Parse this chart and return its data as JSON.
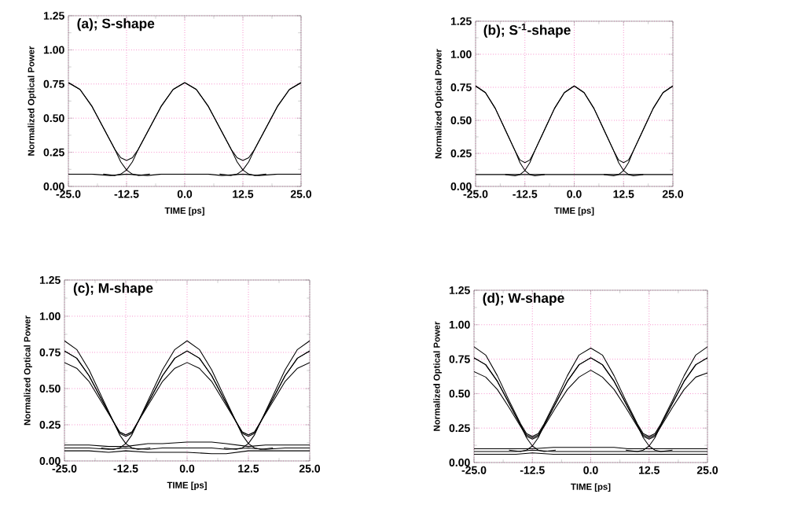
{
  "chart_data": [
    {
      "type": "line",
      "title": "(a); S-shape",
      "xlabel": "TIME [ps]",
      "ylabel": "Normalized Optical Power",
      "xlim": [
        -25,
        25
      ],
      "ylim": [
        0,
        1.25
      ],
      "grid": true,
      "xticks": [
        {
          "value": -25,
          "label": "-25.0"
        },
        {
          "value": -12.5,
          "label": "-12.5"
        },
        {
          "value": 0,
          "label": "0.0"
        },
        {
          "value": 12.5,
          "label": "12.5"
        },
        {
          "value": 25,
          "label": "25.0"
        }
      ],
      "yticks": [
        {
          "value": 0,
          "label": "0.00"
        },
        {
          "value": 0.25,
          "label": "0.25"
        },
        {
          "value": 0.5,
          "label": "0.50"
        },
        {
          "value": 0.75,
          "label": "0.75"
        },
        {
          "value": 1,
          "label": "1.00"
        },
        {
          "value": 1.25,
          "label": "1.25"
        }
      ],
      "series": [
        {
          "color": "#000000",
          "x": [
            -25,
            -22.5,
            -20,
            -17.5,
            -15,
            -13.75,
            -12.5,
            -11.25,
            -10,
            -7.5,
            -5,
            -2.5,
            0,
            2.5,
            5,
            7.5,
            10,
            11.25,
            12.5,
            13.75,
            15,
            17.5,
            20,
            22.5,
            25
          ],
          "values": [
            0.76,
            0.71,
            0.59,
            0.43,
            0.27,
            0.21,
            0.19,
            0.21,
            0.27,
            0.43,
            0.59,
            0.71,
            0.76,
            0.71,
            0.59,
            0.43,
            0.27,
            0.21,
            0.19,
            0.21,
            0.27,
            0.43,
            0.59,
            0.71,
            0.76
          ]
        },
        {
          "color": "#000000",
          "x": [
            -25,
            -20,
            -16,
            -12.5,
            -8,
            -5,
            0,
            5,
            8,
            12.5,
            16,
            20,
            25
          ],
          "values": [
            0.09,
            0.09,
            0.08,
            0.09,
            0.08,
            0.09,
            0.09,
            0.09,
            0.08,
            0.09,
            0.08,
            0.09,
            0.09
          ]
        },
        {
          "color": "#000000",
          "x": [
            -25,
            -22.5,
            -20,
            -17.5,
            -15,
            -13.75,
            -12.5,
            -11.25,
            -10,
            -7.5
          ],
          "values": [
            0.76,
            0.71,
            0.59,
            0.43,
            0.27,
            0.18,
            0.12,
            0.09,
            0.08,
            0.09
          ]
        },
        {
          "color": "#000000",
          "x": [
            -17.5,
            -15,
            -13.75,
            -12.5,
            -11.25,
            -10,
            -7.5,
            -5,
            -2.5,
            0
          ],
          "values": [
            0.09,
            0.08,
            0.09,
            0.12,
            0.18,
            0.27,
            0.43,
            0.59,
            0.71,
            0.76
          ]
        },
        {
          "color": "#000000",
          "x": [
            0,
            2.5,
            5,
            7.5,
            10,
            11.25,
            12.5,
            13.75,
            15,
            17.5
          ],
          "values": [
            0.76,
            0.71,
            0.59,
            0.43,
            0.27,
            0.18,
            0.12,
            0.09,
            0.08,
            0.09
          ]
        },
        {
          "color": "#000000",
          "x": [
            7.5,
            10,
            11.25,
            12.5,
            13.75,
            15,
            17.5,
            20,
            22.5,
            25
          ],
          "values": [
            0.09,
            0.08,
            0.09,
            0.12,
            0.18,
            0.27,
            0.43,
            0.59,
            0.71,
            0.76
          ]
        }
      ]
    },
    {
      "type": "line",
      "title": "(b); S$^{-1}$-shape",
      "xlabel": "TIME [ps]",
      "ylabel": "Normalized Optical Power",
      "xlim": [
        -25,
        25
      ],
      "ylim": [
        0,
        1.25
      ],
      "grid": true,
      "xticks": [
        {
          "value": -25,
          "label": "-25.0"
        },
        {
          "value": -12.5,
          "label": "-12.5"
        },
        {
          "value": 0,
          "label": "0.0"
        },
        {
          "value": 12.5,
          "label": "12.5"
        },
        {
          "value": 25,
          "label": "25.0"
        }
      ],
      "yticks": [
        {
          "value": 0,
          "label": "0.00"
        },
        {
          "value": 0.25,
          "label": "0.25"
        },
        {
          "value": 0.5,
          "label": "0.50"
        },
        {
          "value": 0.75,
          "label": "0.75"
        },
        {
          "value": 1,
          "label": "1.00"
        },
        {
          "value": 1.25,
          "label": "1.25"
        }
      ],
      "series": [
        {
          "color": "#000000",
          "x": [
            -25,
            -22.5,
            -20,
            -17.5,
            -15,
            -13.75,
            -12.5,
            -11.25,
            -10,
            -7.5,
            -5,
            -2.5,
            0,
            2.5,
            5,
            7.5,
            10,
            11.25,
            12.5,
            13.75,
            15,
            17.5,
            20,
            22.5,
            25
          ],
          "values": [
            0.76,
            0.71,
            0.59,
            0.43,
            0.27,
            0.2,
            0.18,
            0.2,
            0.27,
            0.43,
            0.59,
            0.71,
            0.76,
            0.71,
            0.59,
            0.43,
            0.27,
            0.2,
            0.18,
            0.2,
            0.27,
            0.43,
            0.59,
            0.71,
            0.76
          ]
        },
        {
          "color": "#000000",
          "x": [
            -25,
            -20,
            -16,
            -12.5,
            -8,
            -5,
            0,
            5,
            8,
            12.5,
            16,
            20,
            25
          ],
          "values": [
            0.09,
            0.09,
            0.09,
            0.09,
            0.09,
            0.09,
            0.09,
            0.09,
            0.09,
            0.09,
            0.09,
            0.09,
            0.09
          ]
        },
        {
          "color": "#000000",
          "x": [
            -25,
            -22.5,
            -20,
            -17.5,
            -15,
            -13.75,
            -12.5,
            -11.25,
            -10,
            -7.5
          ],
          "values": [
            0.76,
            0.71,
            0.59,
            0.43,
            0.27,
            0.18,
            0.12,
            0.09,
            0.08,
            0.09
          ]
        },
        {
          "color": "#000000",
          "x": [
            -17.5,
            -15,
            -13.75,
            -12.5,
            -11.25,
            -10,
            -7.5,
            -5,
            -2.5,
            0
          ],
          "values": [
            0.09,
            0.08,
            0.09,
            0.12,
            0.18,
            0.27,
            0.43,
            0.59,
            0.71,
            0.76
          ]
        },
        {
          "color": "#000000",
          "x": [
            0,
            2.5,
            5,
            7.5,
            10,
            11.25,
            12.5,
            13.75,
            15,
            17.5
          ],
          "values": [
            0.76,
            0.71,
            0.59,
            0.43,
            0.27,
            0.18,
            0.12,
            0.09,
            0.08,
            0.09
          ]
        },
        {
          "color": "#000000",
          "x": [
            7.5,
            10,
            11.25,
            12.5,
            13.75,
            15,
            17.5,
            20,
            22.5,
            25
          ],
          "values": [
            0.09,
            0.08,
            0.09,
            0.12,
            0.18,
            0.27,
            0.43,
            0.59,
            0.71,
            0.76
          ]
        }
      ]
    },
    {
      "type": "line",
      "title": "(c); M-shape",
      "xlabel": "TIME [ps]",
      "ylabel": "Normalized Optical Power",
      "xlim": [
        -25,
        25
      ],
      "ylim": [
        0,
        1.25
      ],
      "grid": true,
      "xticks": [
        {
          "value": -25,
          "label": "-25.0"
        },
        {
          "value": -12.5,
          "label": "-12.5"
        },
        {
          "value": 0,
          "label": "0.0"
        },
        {
          "value": 12.5,
          "label": "12.5"
        },
        {
          "value": 25,
          "label": "25.0"
        }
      ],
      "yticks": [
        {
          "value": 0,
          "label": "0.00"
        },
        {
          "value": 0.25,
          "label": "0.25"
        },
        {
          "value": 0.5,
          "label": "0.50"
        },
        {
          "value": 0.75,
          "label": "0.75"
        },
        {
          "value": 1,
          "label": "1.00"
        },
        {
          "value": 1.25,
          "label": "1.25"
        }
      ],
      "series": [
        {
          "color": "#000000",
          "x": [
            -25,
            -22.5,
            -20,
            -17.5,
            -15,
            -13.75,
            -12.5,
            -11.25,
            -10,
            -7.5,
            -5,
            -2.5,
            0,
            2.5,
            5,
            7.5,
            10,
            11.25,
            12.5,
            13.75,
            15,
            17.5,
            20,
            22.5,
            25
          ],
          "values": [
            0.76,
            0.71,
            0.59,
            0.43,
            0.27,
            0.2,
            0.18,
            0.2,
            0.27,
            0.43,
            0.59,
            0.71,
            0.76,
            0.71,
            0.59,
            0.43,
            0.27,
            0.2,
            0.18,
            0.2,
            0.27,
            0.43,
            0.59,
            0.71,
            0.76
          ]
        },
        {
          "color": "#000000",
          "x": [
            -25,
            -22.5,
            -20,
            -17.5,
            -15,
            -13.75,
            -12.5,
            -11.25,
            -10,
            -7.5,
            -5,
            -2.5,
            0,
            2.5,
            5,
            7.5,
            10,
            11.25,
            12.5,
            13.75,
            15,
            17.5,
            20,
            22.5,
            25
          ],
          "values": [
            0.83,
            0.77,
            0.63,
            0.45,
            0.27,
            0.19,
            0.17,
            0.19,
            0.27,
            0.45,
            0.63,
            0.77,
            0.83,
            0.77,
            0.63,
            0.45,
            0.27,
            0.19,
            0.17,
            0.19,
            0.27,
            0.45,
            0.63,
            0.77,
            0.83
          ]
        },
        {
          "color": "#000000",
          "x": [
            -25,
            -22.5,
            -20,
            -17.5,
            -15,
            -13.75,
            -12.5,
            -11.25,
            -10,
            -7.5,
            -5,
            -2.5,
            0,
            2.5,
            5,
            7.5,
            10,
            11.25,
            12.5,
            13.75,
            15,
            17.5,
            20,
            22.5,
            25
          ],
          "values": [
            0.68,
            0.64,
            0.55,
            0.41,
            0.27,
            0.2,
            0.18,
            0.2,
            0.27,
            0.41,
            0.55,
            0.64,
            0.68,
            0.64,
            0.55,
            0.41,
            0.27,
            0.2,
            0.18,
            0.2,
            0.27,
            0.41,
            0.55,
            0.64,
            0.68
          ]
        },
        {
          "color": "#000000",
          "x": [
            -25,
            -20,
            -16,
            -12.5,
            -8,
            -5,
            0,
            5,
            8,
            12.5,
            16,
            20,
            25
          ],
          "values": [
            0.09,
            0.09,
            0.08,
            0.09,
            0.08,
            0.09,
            0.09,
            0.09,
            0.08,
            0.09,
            0.08,
            0.09,
            0.09
          ]
        },
        {
          "color": "#000000",
          "x": [
            -25,
            -20,
            -16,
            -12.5,
            -8,
            -5,
            0,
            5,
            8,
            12.5,
            16,
            20,
            25
          ],
          "values": [
            0.11,
            0.11,
            0.1,
            0.1,
            0.12,
            0.12,
            0.13,
            0.13,
            0.12,
            0.1,
            0.11,
            0.11,
            0.11
          ]
        },
        {
          "color": "#000000",
          "x": [
            -25,
            -20,
            -16,
            -12.5,
            -8,
            -5,
            0,
            5,
            8,
            12.5,
            16,
            20,
            25
          ],
          "values": [
            0.07,
            0.07,
            0.06,
            0.07,
            0.06,
            0.06,
            0.06,
            0.05,
            0.05,
            0.07,
            0.07,
            0.07,
            0.07
          ]
        },
        {
          "color": "#000000",
          "x": [
            -25,
            -22.5,
            -20,
            -17.5,
            -15,
            -13.75,
            -12.5,
            -11.25,
            -10,
            -7.5
          ],
          "values": [
            0.76,
            0.71,
            0.59,
            0.43,
            0.27,
            0.18,
            0.12,
            0.09,
            0.08,
            0.09
          ]
        },
        {
          "color": "#000000",
          "x": [
            -17.5,
            -15,
            -13.75,
            -12.5,
            -11.25,
            -10,
            -7.5,
            -5,
            -2.5,
            0
          ],
          "values": [
            0.09,
            0.08,
            0.09,
            0.12,
            0.18,
            0.27,
            0.43,
            0.59,
            0.71,
            0.76
          ]
        },
        {
          "color": "#000000",
          "x": [
            0,
            2.5,
            5,
            7.5,
            10,
            11.25,
            12.5,
            13.75,
            15,
            17.5
          ],
          "values": [
            0.76,
            0.71,
            0.59,
            0.43,
            0.27,
            0.18,
            0.12,
            0.09,
            0.08,
            0.09
          ]
        },
        {
          "color": "#000000",
          "x": [
            7.5,
            10,
            11.25,
            12.5,
            13.75,
            15,
            17.5,
            20,
            22.5,
            25
          ],
          "values": [
            0.09,
            0.08,
            0.09,
            0.12,
            0.18,
            0.27,
            0.43,
            0.59,
            0.71,
            0.76
          ]
        }
      ]
    },
    {
      "type": "line",
      "title": "(d); W-shape",
      "xlabel": "TIME [ps]",
      "ylabel": "Normalized Optical Power",
      "xlim": [
        -25,
        25
      ],
      "ylim": [
        0,
        1.25
      ],
      "grid": true,
      "xticks": [
        {
          "value": -25,
          "label": "-25.0"
        },
        {
          "value": -12.5,
          "label": "-12.5"
        },
        {
          "value": 0,
          "label": "0.0"
        },
        {
          "value": 12.5,
          "label": "12.5"
        },
        {
          "value": 25,
          "label": "25.0"
        }
      ],
      "yticks": [
        {
          "value": 0,
          "label": "0.00"
        },
        {
          "value": 0.25,
          "label": "0.25"
        },
        {
          "value": 0.5,
          "label": "0.50"
        },
        {
          "value": 0.75,
          "label": "0.75"
        },
        {
          "value": 1,
          "label": "1.00"
        },
        {
          "value": 1.25,
          "label": "1.25"
        }
      ],
      "series": [
        {
          "color": "#000000",
          "x": [
            -25,
            -22.5,
            -20,
            -17.5,
            -15,
            -13.75,
            -12.5,
            -11.25,
            -10,
            -7.5,
            -5,
            -2.5,
            0,
            2.5,
            5,
            7.5,
            10,
            11.25,
            12.5,
            13.75,
            15,
            17.5,
            20,
            22.5,
            25
          ],
          "values": [
            0.76,
            0.71,
            0.59,
            0.43,
            0.27,
            0.2,
            0.18,
            0.2,
            0.27,
            0.43,
            0.59,
            0.71,
            0.76,
            0.71,
            0.59,
            0.43,
            0.27,
            0.2,
            0.18,
            0.2,
            0.27,
            0.43,
            0.59,
            0.71,
            0.76
          ]
        },
        {
          "color": "#000000",
          "x": [
            -25,
            -22.5,
            -20,
            -17.5,
            -15,
            -13.75,
            -12.5,
            -11.25,
            -10,
            -7.5,
            -5,
            -2.5,
            0,
            2.5,
            5,
            7.5,
            10,
            11.25,
            12.5,
            13.75,
            15,
            17.5,
            20,
            22.5,
            25
          ],
          "values": [
            0.84,
            0.78,
            0.63,
            0.45,
            0.28,
            0.21,
            0.19,
            0.21,
            0.28,
            0.45,
            0.63,
            0.78,
            0.83,
            0.78,
            0.63,
            0.45,
            0.28,
            0.21,
            0.19,
            0.21,
            0.28,
            0.45,
            0.63,
            0.78,
            0.84
          ]
        },
        {
          "color": "#000000",
          "x": [
            -25,
            -22.5,
            -20,
            -17.5,
            -15,
            -13.75,
            -12.5,
            -11.25,
            -10,
            -7.5,
            -5,
            -2.5,
            0,
            2.5,
            5,
            7.5,
            10,
            11.25,
            12.5,
            13.75,
            15,
            17.5,
            20,
            22.5,
            25
          ],
          "values": [
            0.66,
            0.62,
            0.53,
            0.4,
            0.26,
            0.19,
            0.17,
            0.19,
            0.26,
            0.4,
            0.53,
            0.62,
            0.67,
            0.62,
            0.53,
            0.4,
            0.26,
            0.19,
            0.17,
            0.19,
            0.26,
            0.4,
            0.53,
            0.62,
            0.65
          ]
        },
        {
          "color": "#000000",
          "x": [
            -25,
            -20,
            -16,
            -12.5,
            -8,
            -5,
            0,
            5,
            8,
            12.5,
            16,
            20,
            25
          ],
          "values": [
            0.08,
            0.08,
            0.08,
            0.09,
            0.08,
            0.08,
            0.08,
            0.08,
            0.08,
            0.08,
            0.08,
            0.08,
            0.08
          ]
        },
        {
          "color": "#000000",
          "x": [
            -25,
            -20,
            -16,
            -12.5,
            -8,
            -5,
            0,
            5,
            8,
            12.5,
            16,
            20,
            25
          ],
          "values": [
            0.1,
            0.1,
            0.1,
            0.1,
            0.11,
            0.11,
            0.11,
            0.11,
            0.1,
            0.1,
            0.1,
            0.1,
            0.1
          ]
        },
        {
          "color": "#000000",
          "x": [
            -25,
            -20,
            -16,
            -12.5,
            -8,
            -5,
            0,
            5,
            8,
            12.5,
            16,
            20,
            25
          ],
          "values": [
            0.06,
            0.06,
            0.06,
            0.07,
            0.06,
            0.06,
            0.06,
            0.06,
            0.06,
            0.06,
            0.06,
            0.06,
            0.06
          ]
        },
        {
          "color": "#000000",
          "x": [
            -25,
            -22.5,
            -20,
            -17.5,
            -15,
            -13.75,
            -12.5,
            -11.25,
            -10,
            -7.5
          ],
          "values": [
            0.76,
            0.71,
            0.59,
            0.43,
            0.27,
            0.18,
            0.12,
            0.09,
            0.08,
            0.09
          ]
        },
        {
          "color": "#000000",
          "x": [
            -17.5,
            -15,
            -13.75,
            -12.5,
            -11.25,
            -10,
            -7.5,
            -5,
            -2.5,
            0
          ],
          "values": [
            0.09,
            0.08,
            0.09,
            0.12,
            0.18,
            0.27,
            0.43,
            0.59,
            0.71,
            0.76
          ]
        },
        {
          "color": "#000000",
          "x": [
            0,
            2.5,
            5,
            7.5,
            10,
            11.25,
            12.5,
            13.75,
            15,
            17.5
          ],
          "values": [
            0.76,
            0.71,
            0.59,
            0.43,
            0.27,
            0.18,
            0.12,
            0.09,
            0.08,
            0.09
          ]
        },
        {
          "color": "#000000",
          "x": [
            7.5,
            10,
            11.25,
            12.5,
            13.75,
            15,
            17.5,
            20,
            22.5,
            25
          ],
          "values": [
            0.09,
            0.08,
            0.09,
            0.12,
            0.18,
            0.27,
            0.43,
            0.59,
            0.71,
            0.76
          ]
        }
      ]
    }
  ]
}
